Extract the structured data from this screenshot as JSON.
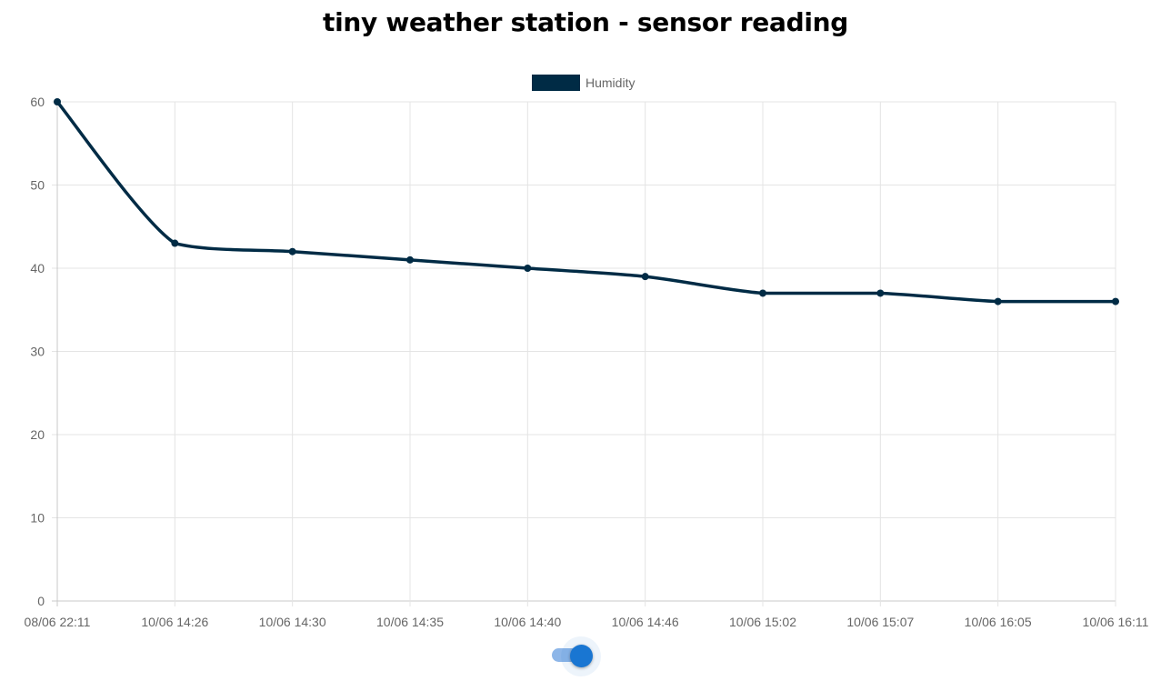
{
  "page_title": "tiny weather station - sensor reading",
  "toggle": {
    "checked": true,
    "color": "#1976d2"
  },
  "chart_data": {
    "type": "line",
    "title": "tiny weather station - sensor reading",
    "categories": [
      "08/06 22:11",
      "10/06 14:26",
      "10/06 14:30",
      "10/06 14:35",
      "10/06 14:40",
      "10/06 14:46",
      "10/06 15:02",
      "10/06 15:07",
      "10/06 16:05",
      "10/06 16:11"
    ],
    "series": [
      {
        "name": "Humidity",
        "color": "#002b45",
        "values": [
          60,
          43,
          42,
          41,
          40,
          39,
          37,
          37,
          36,
          36
        ]
      }
    ],
    "ylim": [
      0,
      60
    ],
    "yticks": [
      0,
      10,
      20,
      30,
      40,
      50,
      60
    ],
    "grid": true,
    "legend": "top-center",
    "xlabel": "",
    "ylabel": ""
  }
}
